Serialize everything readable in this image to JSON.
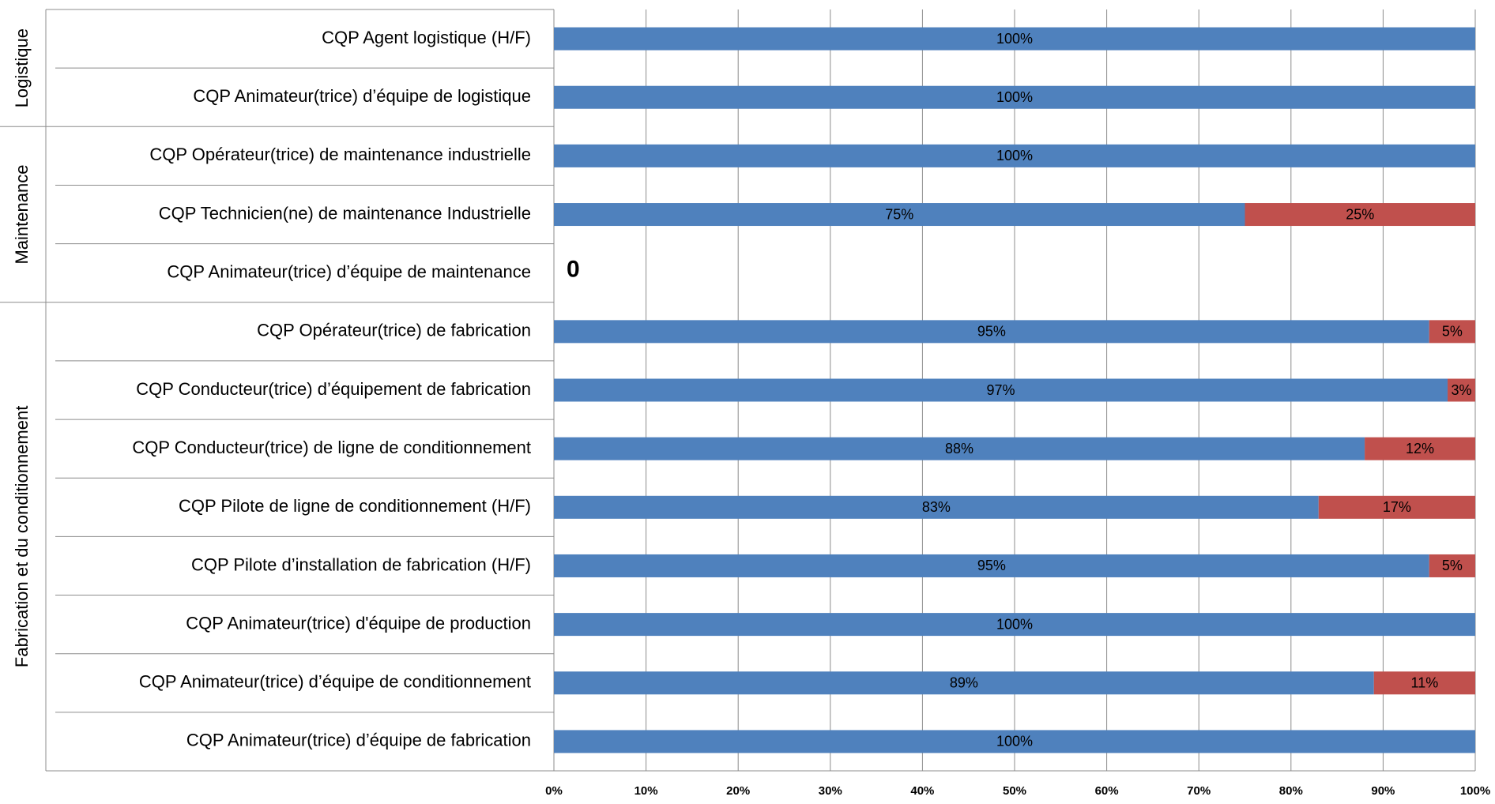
{
  "chart_data": {
    "type": "stacked-barh",
    "categories": [
      "CQP Agent logistique  (H/F)",
      "CQP Animateur(trice)  d’équipe  de logistique",
      "CQP Opérateur(trice) de maintenance industrielle",
      "CQP Technicien(ne) de maintenance Industrielle",
      "CQP Animateur(trice)  d’équipe  de maintenance",
      "CQP Opérateur(trice) de fabrication",
      "CQP Conducteur(trice)  d’équipement  de fabrication",
      "CQP Conducteur(trice) de ligne de conditionnement",
      "CQP Pilote de ligne de conditionnement (H/F)",
      "CQP Pilote d’installation de fabrication (H/F)",
      "CQP Animateur(trice) d'équipe de production",
      "CQP Animateur(trice)  d’équipe  de conditionnement",
      "CQP Animateur(trice)  d’équipe  de fabrication"
    ],
    "groups": [
      {
        "name": "Logistique",
        "categories": 2
      },
      {
        "name": "Maintenance",
        "categories": 3
      },
      {
        "name": "Fabrication et du conditionnement",
        "categories": 8
      }
    ],
    "series": [
      {
        "color": "#4f81bd",
        "values": [
          100,
          100,
          100,
          75,
          0,
          95,
          97,
          88,
          83,
          95,
          100,
          89,
          100
        ],
        "value_labels": [
          "100%",
          "100%",
          "100%",
          "75%",
          "0",
          "95%",
          "97%",
          "88%",
          "83%",
          "95%",
          "100%",
          "89%",
          "100%"
        ]
      },
      {
        "color": "#c0504d",
        "values": [
          null,
          null,
          null,
          25,
          null,
          5,
          3,
          12,
          17,
          5,
          null,
          11,
          null
        ],
        "value_labels": [
          null,
          null,
          null,
          "25%",
          null,
          "5%",
          "3%",
          "12%",
          "17%",
          "5%",
          null,
          "11%",
          null
        ]
      }
    ],
    "xlim": [
      0,
      100
    ],
    "xticks": [
      {
        "value": 0,
        "label": "0%"
      },
      {
        "value": 10,
        "label": "10%"
      },
      {
        "value": 20,
        "label": "20%"
      },
      {
        "value": 30,
        "label": "30%"
      },
      {
        "value": 40,
        "label": "40%"
      },
      {
        "value": 50,
        "label": "50%"
      },
      {
        "value": 60,
        "label": "60%"
      },
      {
        "value": 70,
        "label": "70%"
      },
      {
        "value": 80,
        "label": "80%"
      },
      {
        "value": 90,
        "label": "90%"
      },
      {
        "value": 100,
        "label": "100%"
      }
    ],
    "grid": true
  }
}
